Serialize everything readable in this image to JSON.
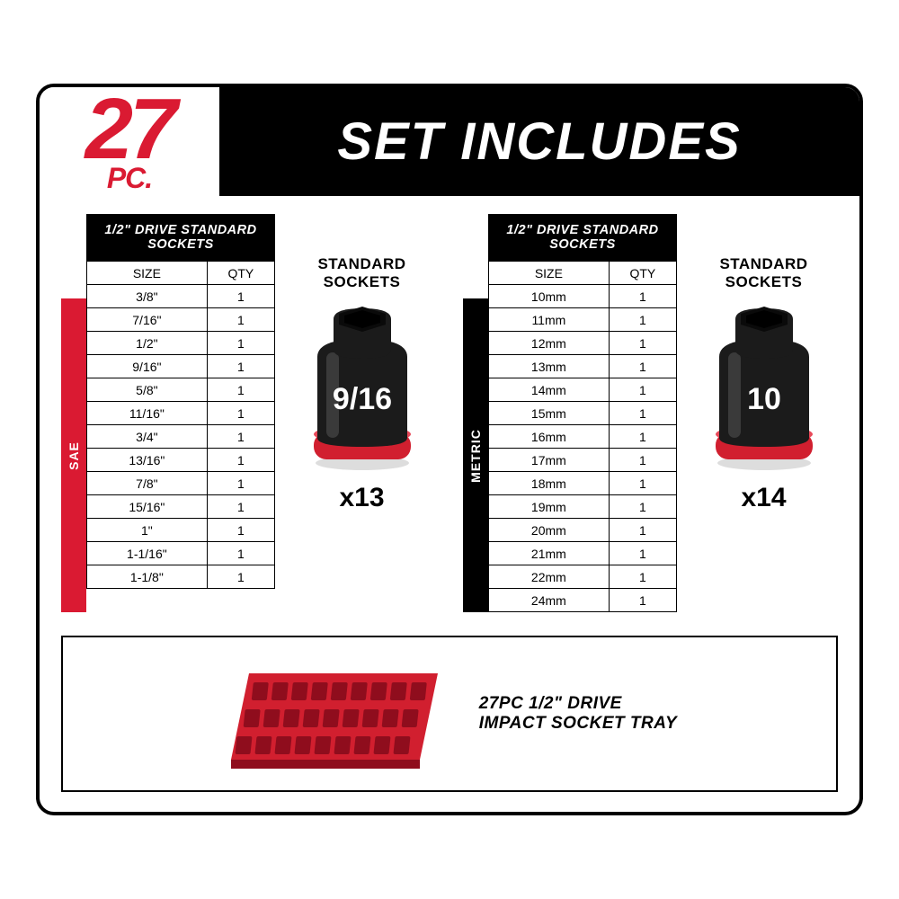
{
  "header": {
    "count": "27",
    "count_unit": "PC.",
    "title": "SET INCLUDES"
  },
  "colors": {
    "brand_red": "#da1a32",
    "black": "#000000",
    "white": "#ffffff",
    "socket_body": "#1b1b1b",
    "socket_shadow": "#0a0a0a",
    "socket_ring": "#d11f2f",
    "tray_red": "#d11f2f",
    "tray_dark": "#8f0d1d"
  },
  "panels": [
    {
      "side_label": "SAE",
      "side_color": "#da1a32",
      "table_title": "1/2\" DRIVE STANDARD SOCKETS",
      "columns": [
        "SIZE",
        "QTY"
      ],
      "rows": [
        [
          "3/8\"",
          "1"
        ],
        [
          "7/16\"",
          "1"
        ],
        [
          "1/2\"",
          "1"
        ],
        [
          "9/16\"",
          "1"
        ],
        [
          "5/8\"",
          "1"
        ],
        [
          "11/16\"",
          "1"
        ],
        [
          "3/4\"",
          "1"
        ],
        [
          "13/16\"",
          "1"
        ],
        [
          "7/8\"",
          "1"
        ],
        [
          "15/16\"",
          "1"
        ],
        [
          "1\"",
          "1"
        ],
        [
          "1-1/16\"",
          "1"
        ],
        [
          "1-1/8\"",
          "1"
        ]
      ],
      "product_label_l1": "STANDARD",
      "product_label_l2": "SOCKETS",
      "socket_text": "9/16",
      "count": "x13"
    },
    {
      "side_label": "METRIC",
      "side_color": "#000000",
      "table_title": "1/2\" DRIVE STANDARD SOCKETS",
      "columns": [
        "SIZE",
        "QTY"
      ],
      "rows": [
        [
          "10mm",
          "1"
        ],
        [
          "11mm",
          "1"
        ],
        [
          "12mm",
          "1"
        ],
        [
          "13mm",
          "1"
        ],
        [
          "14mm",
          "1"
        ],
        [
          "15mm",
          "1"
        ],
        [
          "16mm",
          "1"
        ],
        [
          "17mm",
          "1"
        ],
        [
          "18mm",
          "1"
        ],
        [
          "19mm",
          "1"
        ],
        [
          "20mm",
          "1"
        ],
        [
          "21mm",
          "1"
        ],
        [
          "22mm",
          "1"
        ],
        [
          "24mm",
          "1"
        ]
      ],
      "product_label_l1": "STANDARD",
      "product_label_l2": "SOCKETS",
      "socket_text": "10",
      "count": "x14"
    }
  ],
  "tray": {
    "label_l1": "27PC 1/2\" DRIVE",
    "label_l2": "IMPACT SOCKET TRAY",
    "cols": 9,
    "rows": 3
  }
}
